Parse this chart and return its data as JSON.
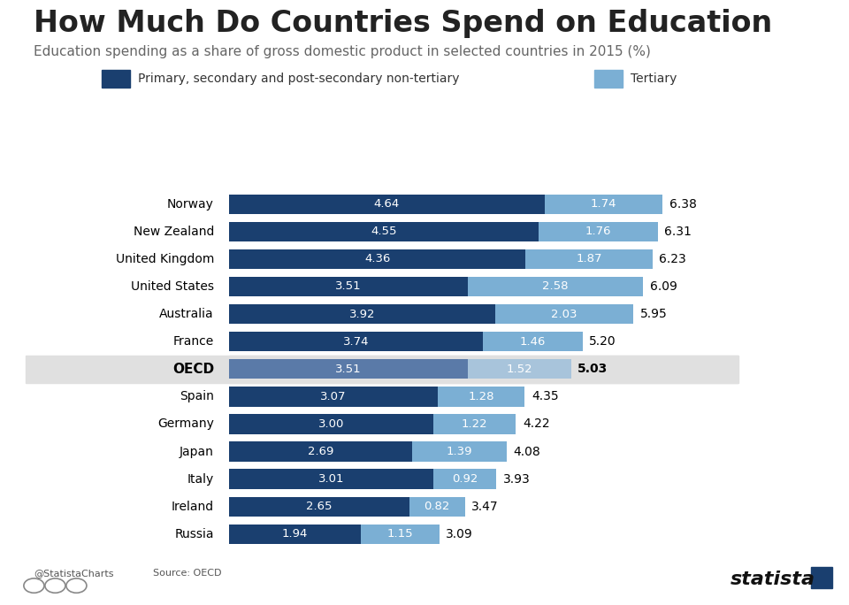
{
  "title": "How Much Do Countries Spend on Education",
  "subtitle": "Education spending as a share of gross domestic product in selected countries in 2015 (%)",
  "countries": [
    "Norway",
    "New Zealand",
    "United Kingdom",
    "United States",
    "Australia",
    "France",
    "OECD",
    "Spain",
    "Germany",
    "Japan",
    "Italy",
    "Ireland",
    "Russia"
  ],
  "primary": [
    4.64,
    4.55,
    4.36,
    3.51,
    3.92,
    3.74,
    3.51,
    3.07,
    3.0,
    2.69,
    3.01,
    2.65,
    1.94
  ],
  "tertiary": [
    1.74,
    1.76,
    1.87,
    2.58,
    2.03,
    1.46,
    1.52,
    1.28,
    1.22,
    1.39,
    0.92,
    0.82,
    1.15
  ],
  "totals": [
    6.38,
    6.31,
    6.23,
    6.09,
    5.95,
    5.2,
    5.03,
    4.35,
    4.22,
    4.08,
    3.93,
    3.47,
    3.09
  ],
  "primary_color": "#1a3f6f",
  "tertiary_color": "#7bafd4",
  "oecd_primary_color": "#5a7aa8",
  "oecd_tertiary_color": "#a8c4db",
  "oecd_bg_color": "#e0e0e0",
  "background_color": "#ffffff",
  "title_fontsize": 24,
  "subtitle_fontsize": 11,
  "legend_label_primary": "Primary, secondary and post-secondary non-tertiary",
  "legend_label_tertiary": "Tertiary",
  "source_text": "Source: OECD",
  "credit_text": "@StatistaCharts",
  "brand_text": "statista"
}
